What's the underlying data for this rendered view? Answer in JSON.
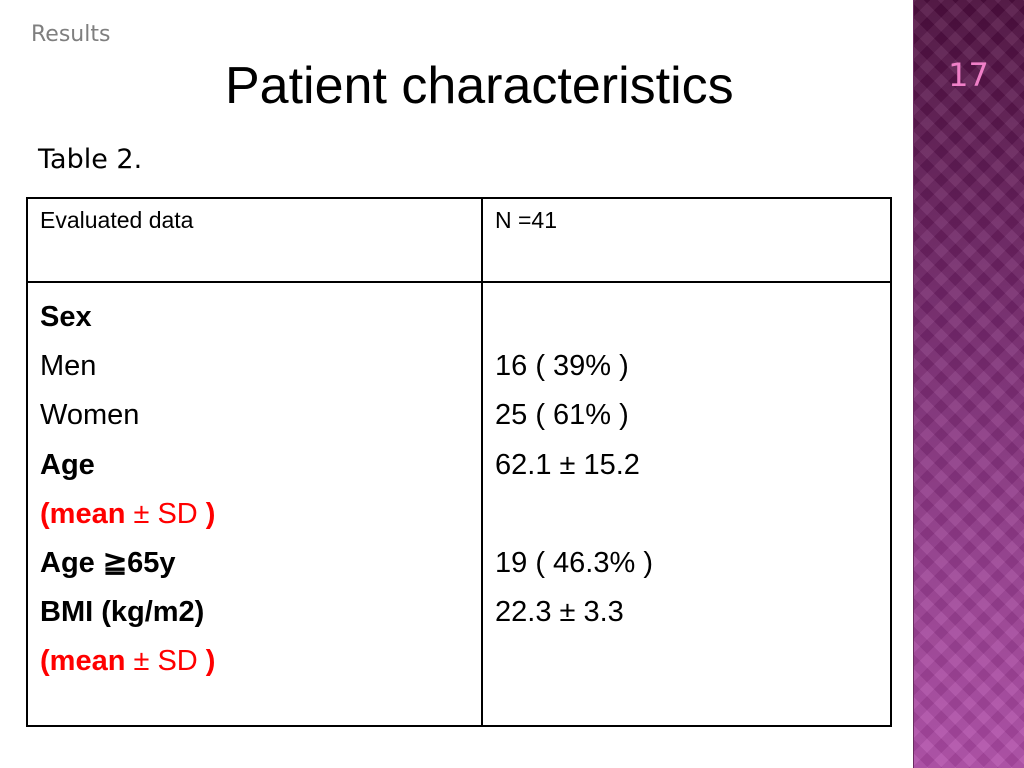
{
  "slide": {
    "section": "Results",
    "title": "Patient characteristics",
    "number": "17",
    "caption": "Table 2."
  },
  "table": {
    "headers": [
      "Evaluated data",
      "N =41"
    ],
    "labels": {
      "sex": "Sex",
      "men": "Men",
      "women": "Women",
      "age": "Age",
      "age_stat": {
        "open": "(mean",
        "pm": " ± ",
        "sd": "SD",
        "close": " )"
      },
      "age65": "Age ≧65y",
      "bmi": "BMI (kg/m2)",
      "bmi_stat": {
        "open": "(mean",
        "pm": " ± ",
        "sd": "SD",
        "close": " )"
      }
    },
    "values": {
      "men": "16 ( 39% )",
      "women": "25 ( 61% )",
      "age": "62.1 ± 15.2",
      "age65": "19 ( 46.3% )",
      "bmi": "22.3 ± 3.3"
    }
  },
  "colors": {
    "accent_panel": "#7a2a72",
    "slide_number": "#f080c8",
    "highlight_text": "#ff0000"
  }
}
